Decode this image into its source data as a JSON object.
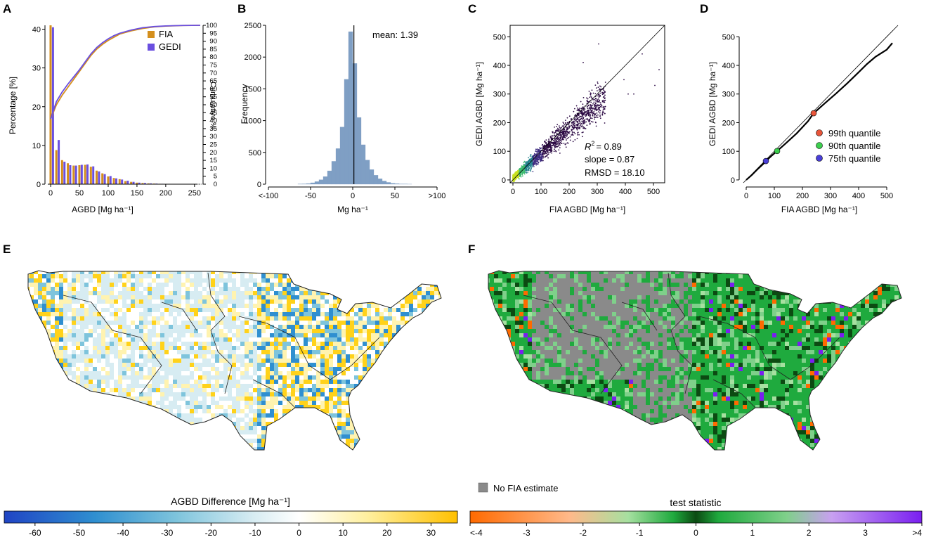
{
  "panels": {
    "A": "A",
    "B": "B",
    "C": "C",
    "D": "D",
    "E": "E",
    "F": "F"
  },
  "chart_data": [
    {
      "id": "A",
      "type": "bar",
      "categories": [
        0,
        10,
        20,
        30,
        40,
        50,
        60,
        70,
        80,
        90,
        100,
        110,
        120,
        130,
        140,
        150,
        160,
        170,
        180,
        190,
        200,
        210,
        220,
        230,
        240,
        250
      ],
      "series": [
        {
          "name": "FIA",
          "color": "#d48f1d",
          "values": [
            41,
            8.8,
            6.2,
            5.4,
            4.8,
            4.9,
            5.0,
            4.5,
            3.5,
            2.8,
            2.0,
            1.6,
            1.3,
            0.8,
            0.6,
            0.4,
            0.3,
            0.2,
            0.15,
            0.1,
            0.08,
            0.06,
            0.05,
            0.04,
            0.03,
            0.02
          ]
        },
        {
          "name": "GEDI",
          "color": "#6a4fe0",
          "values": [
            40.5,
            11.4,
            5.8,
            4.9,
            4.8,
            5.0,
            5.1,
            4.6,
            3.3,
            2.6,
            2.1,
            1.5,
            1.2,
            0.9,
            0.6,
            0.4,
            0.3,
            0.2,
            0.15,
            0.1,
            0.08,
            0.06,
            0.05,
            0.04,
            0.03,
            0.02
          ]
        }
      ],
      "cumulative": {
        "x": [
          0,
          10,
          20,
          30,
          40,
          50,
          60,
          70,
          80,
          90,
          100,
          110,
          120,
          140,
          160,
          180,
          200,
          230,
          260
        ],
        "FIA": [
          41,
          50,
          56,
          61,
          66,
          71,
          76,
          81,
          85,
          88,
          90.5,
          92.5,
          94.5,
          96.5,
          98,
          99,
          99.5,
          99.9,
          100
        ],
        "GEDI": [
          41,
          52,
          58,
          63,
          67.5,
          72,
          77,
          82,
          86,
          89,
          91.5,
          93.5,
          95,
          97,
          98.5,
          99.2,
          99.6,
          99.9,
          100
        ]
      },
      "xlabel": "AGBD [Mg ha⁻¹]",
      "ylabel": "Percentage [%]",
      "y2label": "Cumulative %",
      "xticks": [
        "0",
        "50",
        "100",
        "150",
        "200",
        "250"
      ],
      "yticks": [
        "0",
        "10",
        "20",
        "30",
        "40"
      ],
      "y2ticks": [
        "0",
        "5",
        "10",
        "15",
        "20",
        "25",
        "30",
        "35",
        "40",
        "45",
        "50",
        "55",
        "60",
        "65",
        "70",
        "75",
        "80",
        "85",
        "90",
        "95",
        "100"
      ],
      "xlim": [
        -5,
        260
      ],
      "ylim": [
        0,
        41
      ],
      "y2lim": [
        0,
        100
      ],
      "legend": [
        "FIA",
        "GEDI"
      ]
    },
    {
      "id": "B",
      "type": "bar",
      "bins": [
        -100,
        -95,
        -90,
        -85,
        -80,
        -75,
        -70,
        -65,
        -60,
        -55,
        -50,
        -45,
        -40,
        -35,
        -30,
        -25,
        -20,
        -15,
        -10,
        -5,
        0,
        5,
        10,
        15,
        20,
        25,
        30,
        35,
        40,
        45,
        50,
        55,
        60,
        65,
        70,
        75,
        80,
        85,
        90,
        95
      ],
      "values": [
        0,
        0,
        0,
        0,
        0,
        0,
        0,
        2,
        5,
        10,
        22,
        40,
        70,
        120,
        210,
        360,
        560,
        900,
        1650,
        2400,
        1900,
        1050,
        620,
        380,
        230,
        140,
        85,
        50,
        28,
        14,
        8,
        4,
        2,
        1,
        0,
        0,
        0,
        0,
        0,
        0
      ],
      "color": "#7f9fc4",
      "annotation": "mean: 1.39",
      "mean": 1.39,
      "xlabel": "Mg ha⁻¹",
      "ylabel": "Frequency",
      "xticks": [
        "<-100",
        "-50",
        "0",
        "50",
        ">100"
      ],
      "yticks": [
        "0",
        "500",
        "1000",
        "1500",
        "2000",
        "2500"
      ],
      "xlim": [
        -100,
        100
      ],
      "ylim": [
        0,
        2500
      ]
    },
    {
      "id": "C",
      "type": "scatter",
      "xlabel": "FIA AGBD [Mg ha⁻¹]",
      "ylabel": "GEDI AGBD [Mg ha⁻¹]",
      "xticks": [
        "0",
        "100",
        "200",
        "300",
        "400",
        "500"
      ],
      "yticks": [
        "0",
        "100",
        "200",
        "300",
        "400",
        "500"
      ],
      "xlim": [
        -10,
        540
      ],
      "ylim": [
        -10,
        540
      ],
      "stats": {
        "r2_label": "R",
        "r2_sup": "2",
        "r2": "= 0.89",
        "slope": "slope = 0.87",
        "rmsd": "RMSD = 18.10"
      },
      "point_color": "#2d0b45",
      "density_colors": [
        "#2d0b45",
        "#3c2a7e",
        "#22828c",
        "#3dbb6f",
        "#c8e020"
      ]
    },
    {
      "id": "D",
      "type": "line",
      "quantiles": {
        "x": [
          0,
          20,
          40,
          60,
          70,
          90,
          110,
          140,
          180,
          220,
          240,
          280,
          320,
          360,
          400,
          430,
          460,
          500,
          520
        ],
        "y": [
          0,
          17,
          37,
          55,
          66,
          84,
          101,
          127,
          163,
          205,
          233,
          268,
          302,
          338,
          376,
          405,
          430,
          455,
          478
        ]
      },
      "markers": [
        {
          "label": "99th quantile",
          "color": "#e8553a",
          "x": 240,
          "y": 233
        },
        {
          "label": "90th quantile",
          "color": "#3ccf4e",
          "x": 110,
          "y": 101
        },
        {
          "label": "75th quantile",
          "color": "#4a3fd8",
          "x": 70,
          "y": 66
        }
      ],
      "xlabel": "FIA AGBD [Mg ha⁻¹]",
      "ylabel": "GEDI AGBD [Mg ha⁻¹]",
      "xticks": [
        "0",
        "100",
        "200",
        "300",
        "400",
        "500"
      ],
      "yticks": [
        "0",
        "100",
        "200",
        "300",
        "400",
        "500"
      ],
      "xlim": [
        -10,
        540
      ],
      "ylim": [
        -10,
        540
      ]
    },
    {
      "id": "E",
      "type": "heatmap",
      "title": "AGBD Difference [Mg ha⁻¹]",
      "colorbar_ticks": [
        "-60",
        "-50",
        "-40",
        "-30",
        "-20",
        "-10",
        "0",
        "10",
        "20",
        "30"
      ],
      "colorbar_range": [
        -67,
        36
      ],
      "colors": [
        "#2044c4",
        "#2f8fd0",
        "#7ec4dc",
        "#d7ecf2",
        "#ffffff",
        "#fff3b0",
        "#ffd21a",
        "#ffc000"
      ]
    },
    {
      "id": "F",
      "type": "heatmap",
      "title": "test statistic",
      "legend_na": "No FIA estimate",
      "na_color": "#8a8a8a",
      "colorbar_ticks": [
        "<-4",
        "-3",
        "-2",
        "-1",
        "0",
        "1",
        "2",
        "3",
        ">4"
      ],
      "colorbar_range": [
        -4,
        4
      ],
      "colors": [
        "#ff6a00",
        "#ffb98a",
        "#a6e0a0",
        "#1faa3e",
        "#0c4a12",
        "#1faa3e",
        "#7fd08a",
        "#c8a0f0",
        "#7a1ff0"
      ]
    }
  ]
}
